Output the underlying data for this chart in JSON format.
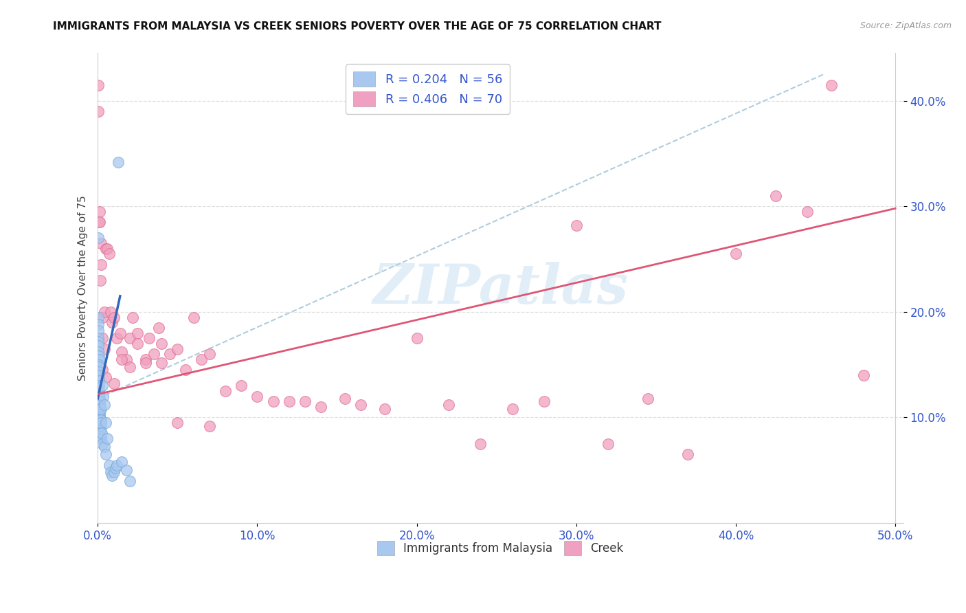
{
  "title": "IMMIGRANTS FROM MALAYSIA VS CREEK SENIORS POVERTY OVER THE AGE OF 75 CORRELATION CHART",
  "source": "Source: ZipAtlas.com",
  "ylabel": "Seniors Poverty Over the Age of 75",
  "xlim": [
    0.0,
    0.505
  ],
  "ylim": [
    0.0,
    0.445
  ],
  "xticks": [
    0.0,
    0.1,
    0.2,
    0.3,
    0.4,
    0.5
  ],
  "yticks": [
    0.1,
    0.2,
    0.3,
    0.4
  ],
  "xtick_labels": [
    "0.0%",
    "10.0%",
    "20.0%",
    "30.0%",
    "40.0%",
    "50.0%"
  ],
  "ytick_labels": [
    "10.0%",
    "20.0%",
    "30.0%",
    "40.0%"
  ],
  "series1_label": "Immigrants from Malaysia",
  "series2_label": "Creek",
  "series1_color": "#a8c8f0",
  "series2_color": "#f0a0c0",
  "series1_edgecolor": "#7aacd8",
  "series2_edgecolor": "#e07090",
  "blue_line_color": "#3366bb",
  "pink_line_color": "#e05575",
  "dashed_line_color": "#b0ccdd",
  "legend_text_color": "#3355cc",
  "watermark": "ZIPatlas",
  "background_color": "#ffffff",
  "grid_color": "#e0e0e0",
  "legend_R1": "R = 0.204",
  "legend_N1": "N = 56",
  "legend_R2": "R = 0.406",
  "legend_N2": "N = 70",
  "blue_line_x0": 0.0,
  "blue_line_x1": 0.014,
  "blue_line_y0": 0.118,
  "blue_line_y1": 0.215,
  "pink_line_x0": 0.0,
  "pink_line_x1": 0.5,
  "pink_line_y0": 0.122,
  "pink_line_y1": 0.298,
  "dash_line_x0": 0.0,
  "dash_line_x1": 0.455,
  "dash_line_y0": 0.118,
  "dash_line_y1": 0.425,
  "series1_x": [
    0.0002,
    0.0003,
    0.0003,
    0.0004,
    0.0004,
    0.0005,
    0.0005,
    0.0005,
    0.0006,
    0.0006,
    0.0006,
    0.0007,
    0.0007,
    0.0007,
    0.0008,
    0.0008,
    0.0008,
    0.0009,
    0.0009,
    0.001,
    0.001,
    0.001,
    0.001,
    0.0012,
    0.0012,
    0.0013,
    0.0013,
    0.0014,
    0.0015,
    0.0015,
    0.0016,
    0.0017,
    0.0018,
    0.002,
    0.002,
    0.002,
    0.0022,
    0.0025,
    0.003,
    0.003,
    0.0035,
    0.004,
    0.004,
    0.005,
    0.005,
    0.006,
    0.007,
    0.008,
    0.009,
    0.01,
    0.011,
    0.012,
    0.013,
    0.015,
    0.018,
    0.02
  ],
  "series1_y": [
    0.27,
    0.195,
    0.188,
    0.182,
    0.175,
    0.172,
    0.168,
    0.162,
    0.158,
    0.155,
    0.15,
    0.148,
    0.143,
    0.14,
    0.135,
    0.13,
    0.126,
    0.123,
    0.12,
    0.118,
    0.115,
    0.112,
    0.108,
    0.105,
    0.102,
    0.1,
    0.098,
    0.095,
    0.092,
    0.09,
    0.088,
    0.085,
    0.082,
    0.108,
    0.098,
    0.08,
    0.095,
    0.085,
    0.13,
    0.075,
    0.12,
    0.112,
    0.072,
    0.095,
    0.065,
    0.08,
    0.055,
    0.048,
    0.045,
    0.048,
    0.052,
    0.055,
    0.342,
    0.058,
    0.05,
    0.04
  ],
  "series2_x": [
    0.0003,
    0.0005,
    0.0008,
    0.001,
    0.0012,
    0.0015,
    0.002,
    0.002,
    0.003,
    0.003,
    0.004,
    0.004,
    0.005,
    0.006,
    0.007,
    0.008,
    0.009,
    0.01,
    0.012,
    0.014,
    0.015,
    0.018,
    0.02,
    0.022,
    0.025,
    0.03,
    0.032,
    0.035,
    0.038,
    0.04,
    0.045,
    0.05,
    0.055,
    0.06,
    0.065,
    0.07,
    0.08,
    0.09,
    0.1,
    0.11,
    0.12,
    0.13,
    0.14,
    0.155,
    0.165,
    0.18,
    0.2,
    0.22,
    0.24,
    0.26,
    0.28,
    0.3,
    0.32,
    0.345,
    0.37,
    0.4,
    0.425,
    0.445,
    0.46,
    0.48,
    0.003,
    0.005,
    0.01,
    0.015,
    0.02,
    0.025,
    0.03,
    0.04,
    0.05,
    0.07
  ],
  "series2_y": [
    0.415,
    0.39,
    0.285,
    0.295,
    0.285,
    0.23,
    0.265,
    0.245,
    0.195,
    0.175,
    0.2,
    0.165,
    0.26,
    0.26,
    0.255,
    0.2,
    0.19,
    0.195,
    0.175,
    0.18,
    0.162,
    0.155,
    0.175,
    0.195,
    0.18,
    0.155,
    0.175,
    0.16,
    0.185,
    0.17,
    0.16,
    0.165,
    0.145,
    0.195,
    0.155,
    0.16,
    0.125,
    0.13,
    0.12,
    0.115,
    0.115,
    0.115,
    0.11,
    0.118,
    0.112,
    0.108,
    0.175,
    0.112,
    0.075,
    0.108,
    0.115,
    0.282,
    0.075,
    0.118,
    0.065,
    0.255,
    0.31,
    0.295,
    0.415,
    0.14,
    0.145,
    0.138,
    0.132,
    0.155,
    0.148,
    0.17,
    0.152,
    0.152,
    0.095,
    0.092
  ]
}
